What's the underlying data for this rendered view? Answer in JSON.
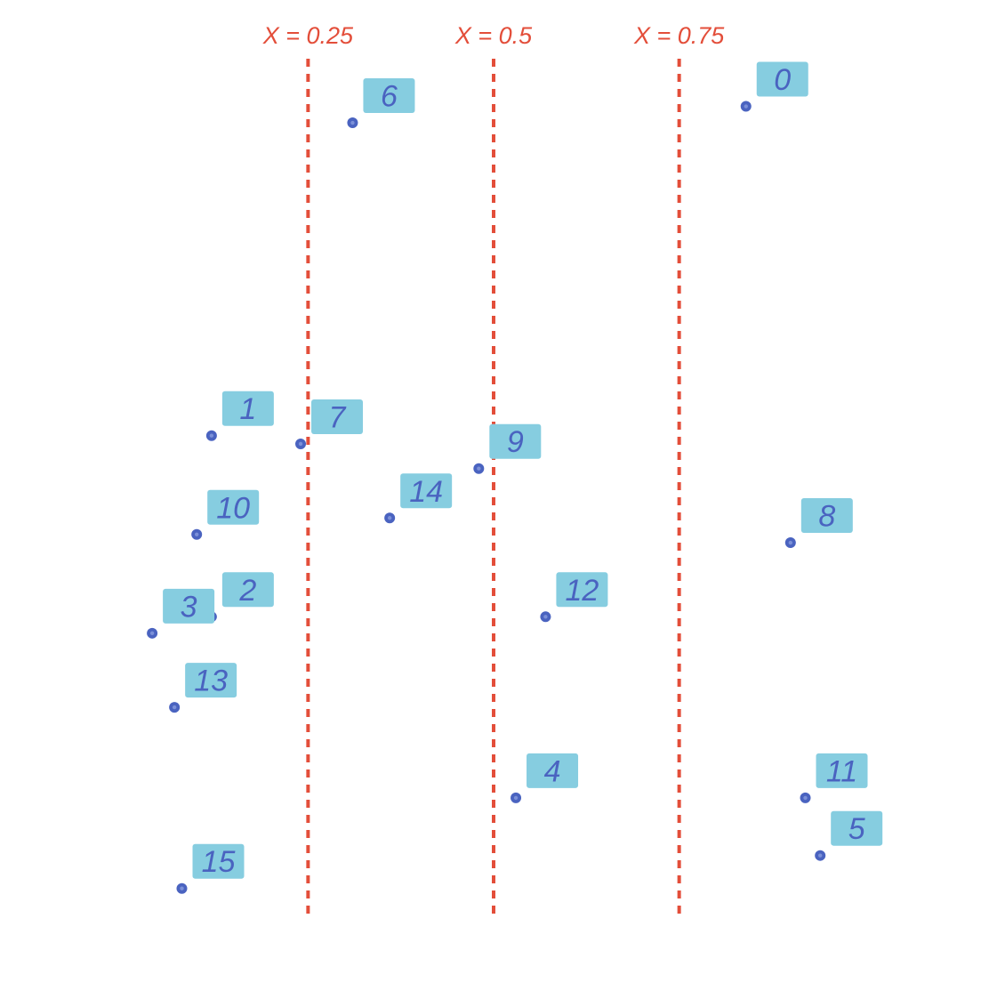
{
  "chart_data": {
    "type": "scatter",
    "title": "",
    "xlabel": "",
    "ylabel": "",
    "xlim": [
      -0.05,
      1.05
    ],
    "ylim": [
      -0.05,
      1.05
    ],
    "grid": false,
    "vertical_lines": [
      {
        "x": 0.25,
        "label": "X = 0.25"
      },
      {
        "x": 0.5,
        "label": "X = 0.5"
      },
      {
        "x": 0.75,
        "label": "X = 0.75"
      }
    ],
    "points": [
      {
        "label": "0",
        "x": 0.84,
        "y": 0.99
      },
      {
        "label": "1",
        "x": 0.12,
        "y": 0.59
      },
      {
        "label": "2",
        "x": 0.12,
        "y": 0.37
      },
      {
        "label": "3",
        "x": 0.04,
        "y": 0.35
      },
      {
        "label": "4",
        "x": 0.53,
        "y": 0.15
      },
      {
        "label": "5",
        "x": 0.94,
        "y": 0.08
      },
      {
        "label": "6",
        "x": 0.31,
        "y": 0.97
      },
      {
        "label": "7",
        "x": 0.24,
        "y": 0.58
      },
      {
        "label": "8",
        "x": 0.9,
        "y": 0.46
      },
      {
        "label": "9",
        "x": 0.48,
        "y": 0.55
      },
      {
        "label": "10",
        "x": 0.1,
        "y": 0.47
      },
      {
        "label": "11",
        "x": 0.92,
        "y": 0.15
      },
      {
        "label": "12",
        "x": 0.57,
        "y": 0.37
      },
      {
        "label": "13",
        "x": 0.07,
        "y": 0.26
      },
      {
        "label": "14",
        "x": 0.36,
        "y": 0.49
      },
      {
        "label": "15",
        "x": 0.08,
        "y": 0.04
      }
    ]
  },
  "colors": {
    "point": "#4a63c0",
    "label_box": "#86cde0",
    "label_text": "#4a63c0",
    "vline": "#e34e3a"
  }
}
